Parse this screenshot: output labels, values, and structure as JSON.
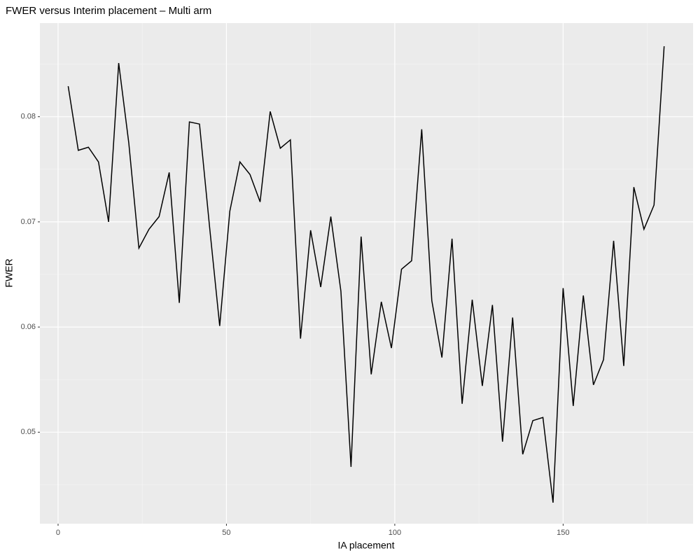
{
  "chart_data": {
    "type": "line",
    "title": "FWER versus Interim placement – Multi arm",
    "x_label": "IA placement",
    "y_label": "FWER",
    "x": [
      3,
      6,
      9,
      12,
      15,
      18,
      21,
      24,
      27,
      30,
      33,
      36,
      39,
      42,
      45,
      48,
      51,
      54,
      57,
      60,
      63,
      66,
      69,
      72,
      75,
      78,
      81,
      84,
      87,
      90,
      93,
      96,
      99,
      102,
      105,
      108,
      111,
      114,
      117,
      120,
      123,
      126,
      129,
      132,
      135,
      138,
      141,
      144,
      147,
      150,
      153,
      156,
      159,
      162,
      165,
      168,
      171,
      174,
      177,
      180
    ],
    "series": [
      {
        "name": "FWER",
        "color": "#000000",
        "values": [
          0.0829,
          0.0768,
          0.0771,
          0.0757,
          0.07,
          0.0851,
          0.0775,
          0.0675,
          0.0693,
          0.0705,
          0.0747,
          0.0623,
          0.0795,
          0.0793,
          0.0695,
          0.0601,
          0.071,
          0.0757,
          0.0745,
          0.0719,
          0.0805,
          0.077,
          0.0778,
          0.0589,
          0.0692,
          0.0638,
          0.0705,
          0.0634,
          0.0467,
          0.0686,
          0.0555,
          0.0624,
          0.058,
          0.0655,
          0.0663,
          0.0788,
          0.0625,
          0.0571,
          0.0684,
          0.0527,
          0.0626,
          0.0544,
          0.0621,
          0.0491,
          0.0609,
          0.0479,
          0.0511,
          0.0514,
          0.0433,
          0.0637,
          0.0525,
          0.063,
          0.0545,
          0.0569,
          0.0682,
          0.0563,
          0.0733,
          0.0693,
          0.0716,
          0.0867
        ]
      }
    ],
    "xlim": [
      -5.4,
      188.6
    ],
    "xticks": [
      0,
      50,
      100,
      150
    ],
    "ylim": [
      0.0413,
      0.0889
    ],
    "yticks": [
      0.05,
      0.06,
      0.07,
      0.08
    ],
    "grid": true
  }
}
